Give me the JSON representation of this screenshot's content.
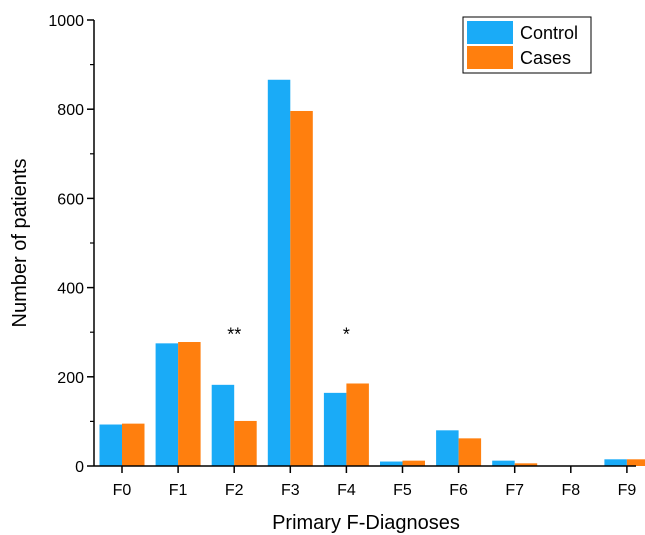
{
  "chart_data": {
    "type": "bar",
    "xlabel": "Primary F-Diagnoses",
    "ylabel": "Number of patients",
    "ylim": [
      0,
      1000
    ],
    "yticks": [
      0,
      200,
      400,
      600,
      800,
      1000
    ],
    "categories": [
      "F0",
      "F1",
      "F2",
      "F3",
      "F4",
      "F5",
      "F6",
      "F7",
      "F8",
      "F9"
    ],
    "series": [
      {
        "name": "Control",
        "color": "#1AABF7",
        "values": [
          93,
          275,
          182,
          866,
          164,
          10,
          80,
          12,
          0,
          15
        ]
      },
      {
        "name": "Cases",
        "color": "#FF7F0E",
        "values": [
          95,
          278,
          101,
          796,
          185,
          12,
          62,
          6,
          0,
          15
        ]
      }
    ],
    "annotations": [
      {
        "category": "F2",
        "text": "**",
        "y": 295
      },
      {
        "category": "F4",
        "text": "*",
        "y": 295
      }
    ],
    "legend_position": "top-right",
    "grid": false
  }
}
